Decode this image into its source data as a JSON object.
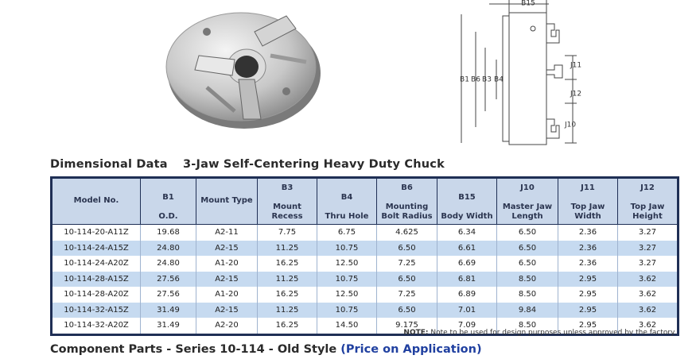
{
  "diagram_labels": {
    "b15": "B15",
    "b1": "B1",
    "b6": "B6",
    "b3": "B3",
    "b4": "B4",
    "j11": "J11",
    "j12": "J12",
    "j10": "J10"
  },
  "section_title": "Dimensional Data",
  "section_subtitle": "3-Jaw Self-Centering Heavy Duty Chuck",
  "table": {
    "header": [
      {
        "label": "Model No."
      },
      {
        "code": "B1",
        "label": "O.D."
      },
      {
        "label": "Mount Type"
      },
      {
        "code": "B3",
        "label": "Mount Recess"
      },
      {
        "code": "B4",
        "label": "Thru Hole"
      },
      {
        "code": "B6",
        "label": "Mounting Bolt Radius"
      },
      {
        "code": "B15",
        "label": "Body Width"
      },
      {
        "code": "J10",
        "label": "Master Jaw Length"
      },
      {
        "code": "J11",
        "label": "Top Jaw Width"
      },
      {
        "code": "J12",
        "label": "Top Jaw Height"
      }
    ],
    "rows": [
      [
        "10-114-20-A11Z",
        "19.68",
        "A2-11",
        "7.75",
        "6.75",
        "4.625",
        "6.34",
        "6.50",
        "2.36",
        "3.27"
      ],
      [
        "10-114-24-A15Z",
        "24.80",
        "A2-15",
        "11.25",
        "10.75",
        "6.50",
        "6.61",
        "6.50",
        "2.36",
        "3.27"
      ],
      [
        "10-114-24-A20Z",
        "24.80",
        "A1-20",
        "16.25",
        "12.50",
        "7.25",
        "6.69",
        "6.50",
        "2.36",
        "3.27"
      ],
      [
        "10-114-28-A15Z",
        "27.56",
        "A2-15",
        "11.25",
        "10.75",
        "6.50",
        "6.81",
        "8.50",
        "2.95",
        "3.62"
      ],
      [
        "10-114-28-A20Z",
        "27.56",
        "A1-20",
        "16.25",
        "12.50",
        "7.25",
        "6.89",
        "8.50",
        "2.95",
        "3.62"
      ],
      [
        "10-114-32-A15Z",
        "31.49",
        "A2-15",
        "11.25",
        "10.75",
        "6.50",
        "7.01",
        "9.84",
        "2.95",
        "3.62"
      ],
      [
        "10-114-32-A20Z",
        "31.49",
        "A2-20",
        "16.25",
        "14.50",
        "9.175",
        "7.09",
        "8.50",
        "2.95",
        "3.62"
      ]
    ]
  },
  "note": {
    "label": "NOTE:",
    "text": "Note to be used for design purposes unless approved by the factory."
  },
  "footer": {
    "title": "Component Parts - Series 10-114 - Old Style",
    "link": "(Price on Application)"
  }
}
